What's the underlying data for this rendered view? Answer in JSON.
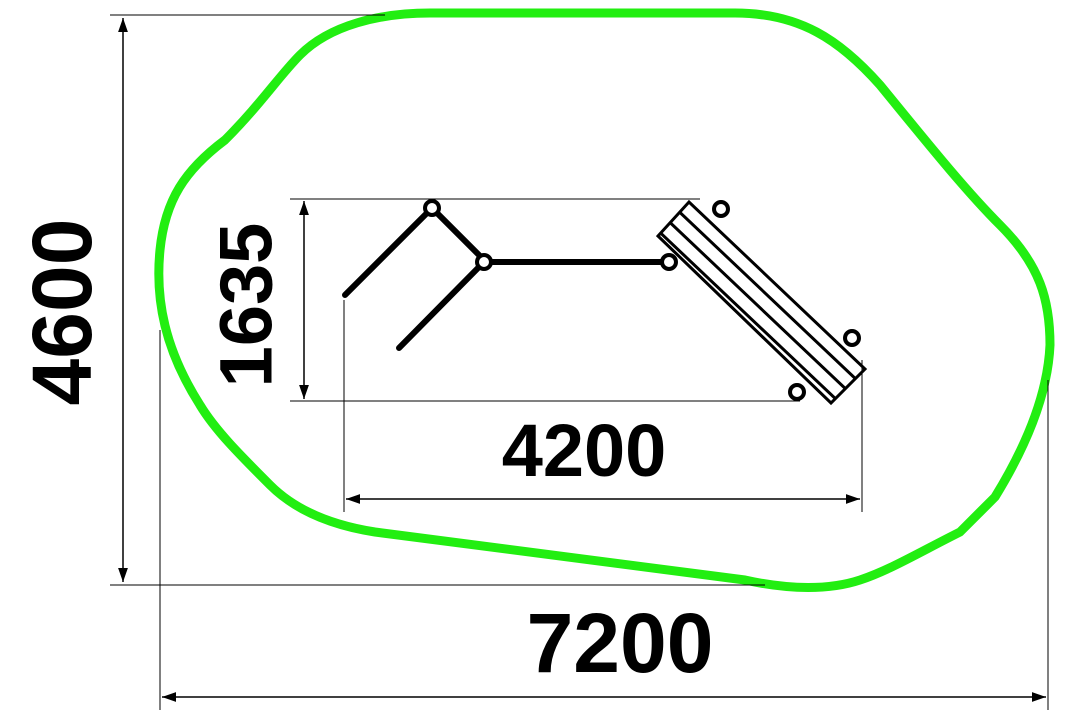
{
  "dimensions": {
    "total_width": "7200",
    "total_height": "4600",
    "equipment_width": "4200",
    "equipment_height": "1635"
  },
  "colors": {
    "safety_zone": "#22ee11",
    "lines": "#000000",
    "background": "#ffffff"
  }
}
